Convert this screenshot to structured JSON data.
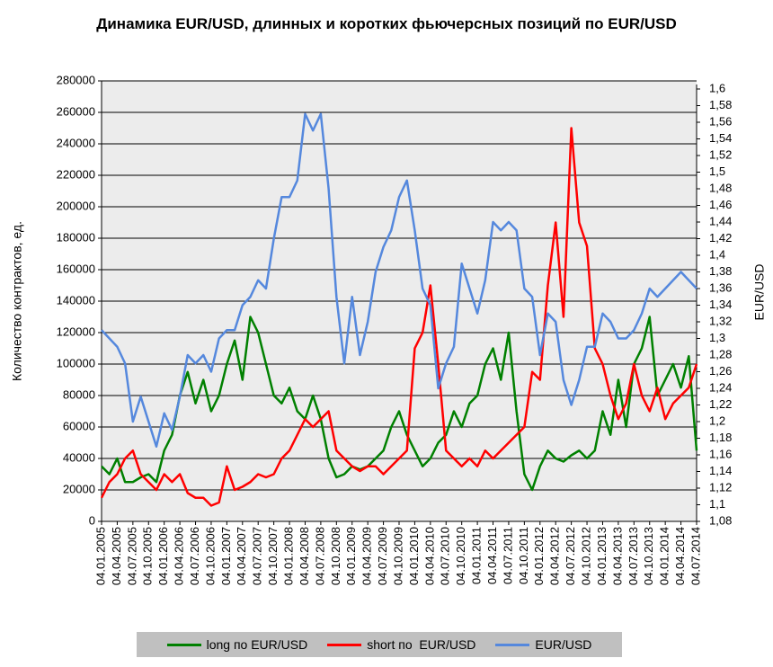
{
  "chart_data": {
    "type": "line",
    "title": "Динамика EUR/USD, длинных и коротких фьючерсных позиций по EUR/USD",
    "ylabel": "Количество контрактов, ед.",
    "y2label": "EUR/USD",
    "categories": [
      "04.01.2005",
      null,
      "04.04.2005",
      null,
      "04.07.2005",
      null,
      "04.10.2005",
      null,
      "04.01.2006",
      null,
      "04.04.2006",
      null,
      "04.07.2006",
      null,
      "04.10.2006",
      null,
      "04.01.2007",
      null,
      "04.04.2007",
      null,
      "04.07.2007",
      null,
      "04.10.2007",
      null,
      "04.01.2008",
      null,
      "04.04.2008",
      null,
      "04.07.2008",
      null,
      "04.10.2008",
      null,
      "04.01.2009",
      null,
      "04.04.2009",
      null,
      "04.07.2009",
      null,
      "04.10.2009",
      null,
      "04.01.2010",
      null,
      "04.04.2010",
      null,
      "04.07.2010",
      null,
      "04.10.2010",
      null,
      "04.01.2011",
      null,
      "04.04.2011",
      null,
      "04.07.2011",
      null,
      "04.10.2011",
      null,
      "04.01.2012",
      null,
      "04.04.2012",
      null,
      "04.07.2012",
      null,
      "04.10.2012",
      null,
      "04.01.2013",
      null,
      "04.04.2013",
      null,
      "04.07.2013",
      null,
      "04.10.2013",
      null,
      "04.01.2014",
      null,
      "04.04.2014",
      null,
      "04.07.2014"
    ],
    "series": [
      {
        "name": "long по EUR/USD",
        "color": "#008000",
        "values": [
          35000,
          30000,
          40000,
          25000,
          25000,
          28000,
          30000,
          25000,
          45000,
          55000,
          80000,
          95000,
          75000,
          90000,
          70000,
          80000,
          100000,
          115000,
          90000,
          130000,
          120000,
          100000,
          80000,
          75000,
          85000,
          70000,
          65000,
          80000,
          65000,
          40000,
          28000,
          30000,
          35000,
          33000,
          35000,
          40000,
          45000,
          60000,
          70000,
          55000,
          45000,
          35000,
          40000,
          50000,
          55000,
          70000,
          60000,
          75000,
          80000,
          100000,
          110000,
          90000,
          120000,
          70000,
          30000,
          20000,
          35000,
          45000,
          40000,
          38000,
          42000,
          45000,
          40000,
          45000,
          70000,
          55000,
          90000,
          60000,
          100000,
          110000,
          130000,
          80000,
          90000,
          100000,
          85000,
          105000,
          45000
        ]
      },
      {
        "name": "short по  EUR/USD",
        "color": "#ff0000",
        "values": [
          15000,
          25000,
          30000,
          40000,
          45000,
          30000,
          25000,
          20000,
          30000,
          25000,
          30000,
          18000,
          15000,
          15000,
          10000,
          12000,
          35000,
          20000,
          22000,
          25000,
          30000,
          28000,
          30000,
          40000,
          45000,
          55000,
          65000,
          60000,
          65000,
          70000,
          45000,
          40000,
          35000,
          32000,
          35000,
          35000,
          30000,
          35000,
          40000,
          45000,
          110000,
          120000,
          150000,
          100000,
          45000,
          40000,
          35000,
          40000,
          35000,
          45000,
          40000,
          45000,
          50000,
          55000,
          60000,
          95000,
          90000,
          150000,
          190000,
          130000,
          250000,
          190000,
          175000,
          110000,
          100000,
          80000,
          65000,
          75000,
          100000,
          80000,
          70000,
          85000,
          65000,
          75000,
          80000,
          85000,
          100000
        ]
      },
      {
        "name": "EUR/USD",
        "color": "#5588dd",
        "axis": "y2",
        "values": [
          1.31,
          1.3,
          1.29,
          1.27,
          1.2,
          1.23,
          1.2,
          1.17,
          1.21,
          1.19,
          1.23,
          1.28,
          1.27,
          1.28,
          1.26,
          1.3,
          1.31,
          1.31,
          1.34,
          1.35,
          1.37,
          1.36,
          1.42,
          1.47,
          1.47,
          1.49,
          1.57,
          1.55,
          1.57,
          1.48,
          1.35,
          1.27,
          1.35,
          1.28,
          1.32,
          1.38,
          1.41,
          1.43,
          1.47,
          1.49,
          1.43,
          1.36,
          1.34,
          1.24,
          1.27,
          1.29,
          1.39,
          1.36,
          1.33,
          1.37,
          1.44,
          1.43,
          1.44,
          1.43,
          1.36,
          1.35,
          1.28,
          1.33,
          1.32,
          1.25,
          1.22,
          1.25,
          1.29,
          1.29,
          1.33,
          1.32,
          1.3,
          1.3,
          1.31,
          1.33,
          1.36,
          1.35,
          1.36,
          1.37,
          1.38,
          1.37,
          1.36
        ]
      }
    ],
    "ylim": [
      0,
      280000
    ],
    "yticks": [
      0,
      20000,
      40000,
      60000,
      80000,
      100000,
      120000,
      140000,
      160000,
      180000,
      200000,
      220000,
      240000,
      260000,
      280000
    ],
    "y2lim": [
      1.08,
      1.6
    ],
    "y2ticks": [
      {
        "value": 1.08,
        "label": "1,08"
      },
      {
        "value": 1.1,
        "label": "1,1"
      },
      {
        "value": 1.12,
        "label": "1,12"
      },
      {
        "value": 1.14,
        "label": "1,14"
      },
      {
        "value": 1.16,
        "label": "1,16"
      },
      {
        "value": 1.18,
        "label": "1,18"
      },
      {
        "value": 1.2,
        "label": "1,2"
      },
      {
        "value": 1.22,
        "label": "1,22"
      },
      {
        "value": 1.24,
        "label": "1,24"
      },
      {
        "value": 1.26,
        "label": "1,26"
      },
      {
        "value": 1.28,
        "label": "1,28"
      },
      {
        "value": 1.3,
        "label": "1,3"
      },
      {
        "value": 1.32,
        "label": "1,32"
      },
      {
        "value": 1.34,
        "label": "1,34"
      },
      {
        "value": 1.36,
        "label": "1,36"
      },
      {
        "value": 1.38,
        "label": "1,38"
      },
      {
        "value": 1.4,
        "label": "1,4"
      },
      {
        "value": 1.42,
        "label": "1,42"
      },
      {
        "value": 1.44,
        "label": "1,44"
      },
      {
        "value": 1.46,
        "label": "1,46"
      },
      {
        "value": 1.48,
        "label": "1,48"
      },
      {
        "value": 1.5,
        "label": "1,5"
      },
      {
        "value": 1.52,
        "label": "1,52"
      },
      {
        "value": 1.54,
        "label": "1,54"
      },
      {
        "value": 1.56,
        "label": "1,56"
      },
      {
        "value": 1.58,
        "label": "1,58"
      },
      {
        "value": 1.6,
        "label": "1,6"
      }
    ],
    "grid": true,
    "legend": "bottom"
  }
}
